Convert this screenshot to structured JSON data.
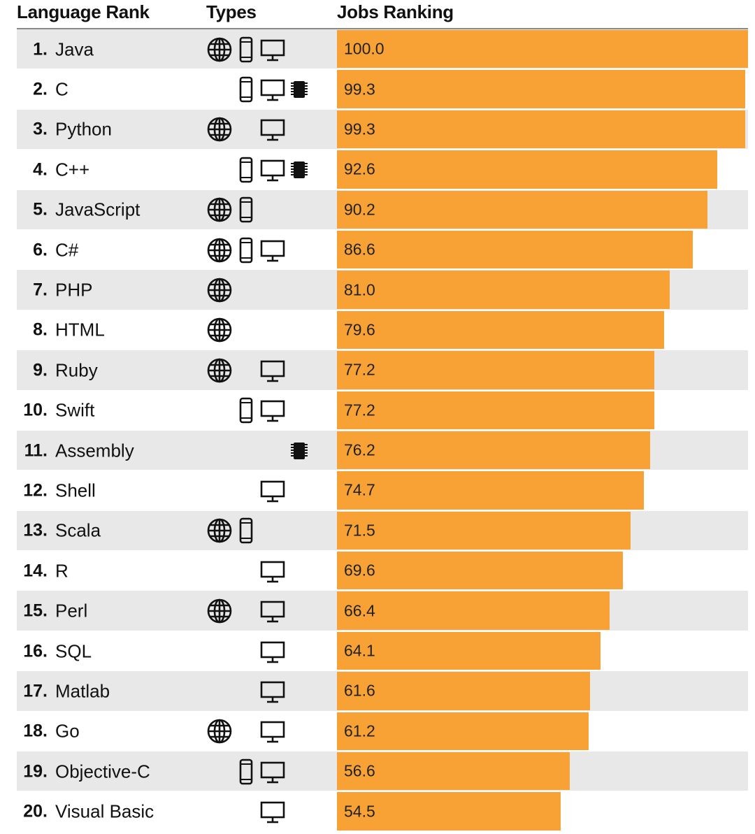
{
  "header": {
    "language_rank": "Language Rank",
    "types": "Types",
    "jobs_ranking": "Jobs Ranking"
  },
  "colors": {
    "bar": "#f8a236",
    "shade": "#e8e8e8",
    "icon": "#111111"
  },
  "chart_data": {
    "type": "bar",
    "orientation": "horizontal",
    "title": "",
    "xlabel": "Jobs Ranking",
    "ylabel": "Language Rank",
    "xlim": [
      0,
      100
    ],
    "type_icons": [
      "web",
      "mobile",
      "desktop",
      "embedded"
    ],
    "rows": [
      {
        "rank": "1.",
        "language": "Java",
        "value": 100.0,
        "label": "100.0",
        "types": [
          "web",
          "mobile",
          "desktop"
        ]
      },
      {
        "rank": "2.",
        "language": "C",
        "value": 99.3,
        "label": "99.3",
        "types": [
          "mobile",
          "desktop",
          "embedded"
        ]
      },
      {
        "rank": "3.",
        "language": "Python",
        "value": 99.3,
        "label": "99.3",
        "types": [
          "web",
          "desktop"
        ]
      },
      {
        "rank": "4.",
        "language": "C++",
        "value": 92.6,
        "label": "92.6",
        "types": [
          "mobile",
          "desktop",
          "embedded"
        ]
      },
      {
        "rank": "5.",
        "language": "JavaScript",
        "value": 90.2,
        "label": "90.2",
        "types": [
          "web",
          "mobile"
        ]
      },
      {
        "rank": "6.",
        "language": "C#",
        "value": 86.6,
        "label": "86.6",
        "types": [
          "web",
          "mobile",
          "desktop"
        ]
      },
      {
        "rank": "7.",
        "language": "PHP",
        "value": 81.0,
        "label": "81.0",
        "types": [
          "web"
        ]
      },
      {
        "rank": "8.",
        "language": "HTML",
        "value": 79.6,
        "label": "79.6",
        "types": [
          "web"
        ]
      },
      {
        "rank": "9.",
        "language": "Ruby",
        "value": 77.2,
        "label": "77.2",
        "types": [
          "web",
          "desktop"
        ]
      },
      {
        "rank": "10.",
        "language": "Swift",
        "value": 77.2,
        "label": "77.2",
        "types": [
          "mobile",
          "desktop"
        ]
      },
      {
        "rank": "11.",
        "language": "Assembly",
        "value": 76.2,
        "label": "76.2",
        "types": [
          "embedded"
        ]
      },
      {
        "rank": "12.",
        "language": "Shell",
        "value": 74.7,
        "label": "74.7",
        "types": [
          "desktop"
        ]
      },
      {
        "rank": "13.",
        "language": "Scala",
        "value": 71.5,
        "label": "71.5",
        "types": [
          "web",
          "mobile"
        ]
      },
      {
        "rank": "14.",
        "language": "R",
        "value": 69.6,
        "label": "69.6",
        "types": [
          "desktop"
        ]
      },
      {
        "rank": "15.",
        "language": "Perl",
        "value": 66.4,
        "label": "66.4",
        "types": [
          "web",
          "desktop"
        ]
      },
      {
        "rank": "16.",
        "language": "SQL",
        "value": 64.1,
        "label": "64.1",
        "types": [
          "desktop"
        ]
      },
      {
        "rank": "17.",
        "language": "Matlab",
        "value": 61.6,
        "label": "61.6",
        "types": [
          "desktop"
        ]
      },
      {
        "rank": "18.",
        "language": "Go",
        "value": 61.2,
        "label": "61.2",
        "types": [
          "web",
          "desktop"
        ]
      },
      {
        "rank": "19.",
        "language": "Objective-C",
        "value": 56.6,
        "label": "56.6",
        "types": [
          "mobile",
          "desktop"
        ]
      },
      {
        "rank": "20.",
        "language": "Visual Basic",
        "value": 54.5,
        "label": "54.5",
        "types": [
          "desktop"
        ]
      }
    ]
  }
}
